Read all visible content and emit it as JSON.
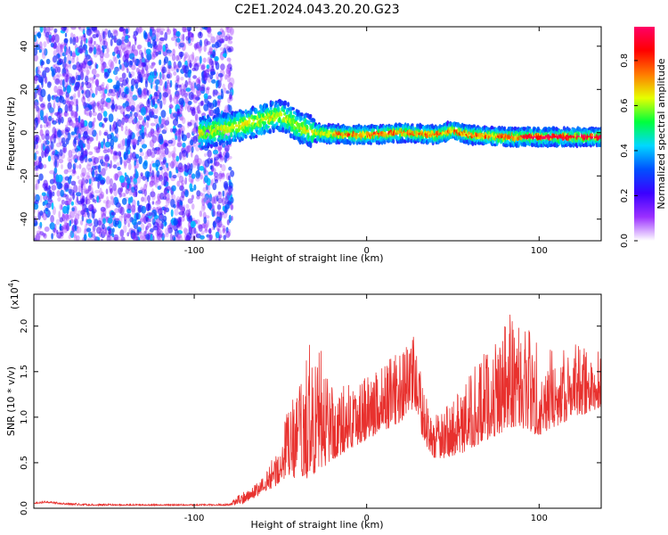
{
  "title": "C2E1.2024.043.20.20.G23",
  "colors": {
    "snr_line": "#e8312e",
    "background": "#ffffff",
    "spectrogram_background": "#ffffff"
  },
  "chart_data": [
    {
      "type": "heatmap",
      "xlabel": "Height of straight line (km)",
      "ylabel": "Frequency (Hz)",
      "xlim": [
        -193,
        136
      ],
      "ylim": [
        -50,
        49
      ],
      "x_ticks": [
        -100,
        0,
        100
      ],
      "y_ticks": [
        -40,
        -20,
        0,
        20,
        40
      ],
      "colorbar": {
        "label": "Normalized spectral amplitude",
        "range": [
          0,
          0.95
        ],
        "ticks": [
          0.0,
          0.2,
          0.4,
          0.6,
          0.8
        ],
        "colormap": [
          "#ffffff",
          "#9b30ff",
          "#3b00ff",
          "#0050ff",
          "#00d8ff",
          "#00ff3c",
          "#e6ff00",
          "#ff7a00",
          "#ff0000",
          "#ff0066"
        ]
      },
      "description_points": {
        "noise_region_x": [
          -193,
          -78
        ],
        "signal_start_x": -97,
        "signal_center_freq": [
          [
            -95,
            0
          ],
          [
            -80,
            2
          ],
          [
            -60,
            6
          ],
          [
            -50,
            8
          ],
          [
            -45,
            6
          ],
          [
            -40,
            3
          ],
          [
            -30,
            0
          ],
          [
            -10,
            -1
          ],
          [
            0,
            -1
          ],
          [
            20,
            0
          ],
          [
            40,
            -1
          ],
          [
            50,
            1
          ],
          [
            60,
            -1
          ],
          [
            80,
            -2
          ],
          [
            100,
            -2
          ],
          [
            120,
            -2
          ],
          [
            136,
            -2
          ]
        ]
      }
    },
    {
      "type": "line",
      "xlabel": "Height of straight line (km)",
      "ylabel": "SNR (10 * v/v)",
      "y_scale_label": "(x10",
      "y_scale_exp": "4",
      "xlim": [
        -193,
        136
      ],
      "ylim": [
        0,
        23500
      ],
      "x_ticks": [
        -100,
        0,
        100
      ],
      "y_ticks": [
        0.0,
        0.5,
        1.0,
        1.5,
        2.0
      ],
      "envelope": [
        [
          -193,
          500,
          700
        ],
        [
          -185,
          600,
          800
        ],
        [
          -175,
          400,
          600
        ],
        [
          -160,
          300,
          500
        ],
        [
          -140,
          300,
          450
        ],
        [
          -120,
          300,
          450
        ],
        [
          -100,
          300,
          450
        ],
        [
          -80,
          300,
          500
        ],
        [
          -72,
          500,
          1800
        ],
        [
          -62,
          1500,
          3000
        ],
        [
          -52,
          2500,
          6500
        ],
        [
          -45,
          3500,
          11500
        ],
        [
          -38,
          3000,
          14000
        ],
        [
          -32,
          3500,
          19000
        ],
        [
          -25,
          4500,
          17000
        ],
        [
          -18,
          5500,
          13000
        ],
        [
          -10,
          6500,
          14000
        ],
        [
          0,
          7500,
          15000
        ],
        [
          10,
          8500,
          16000
        ],
        [
          20,
          9500,
          17500
        ],
        [
          28,
          11000,
          19000
        ],
        [
          32,
          8000,
          14000
        ],
        [
          38,
          5500,
          10000
        ],
        [
          45,
          5500,
          11000
        ],
        [
          55,
          6000,
          13000
        ],
        [
          65,
          7000,
          16500
        ],
        [
          75,
          8000,
          18500
        ],
        [
          85,
          9000,
          22500
        ],
        [
          90,
          8500,
          21500
        ],
        [
          100,
          8000,
          18500
        ],
        [
          110,
          9000,
          17000
        ],
        [
          120,
          10000,
          18000
        ],
        [
          130,
          10500,
          18000
        ],
        [
          136,
          11000,
          17500
        ]
      ]
    }
  ]
}
